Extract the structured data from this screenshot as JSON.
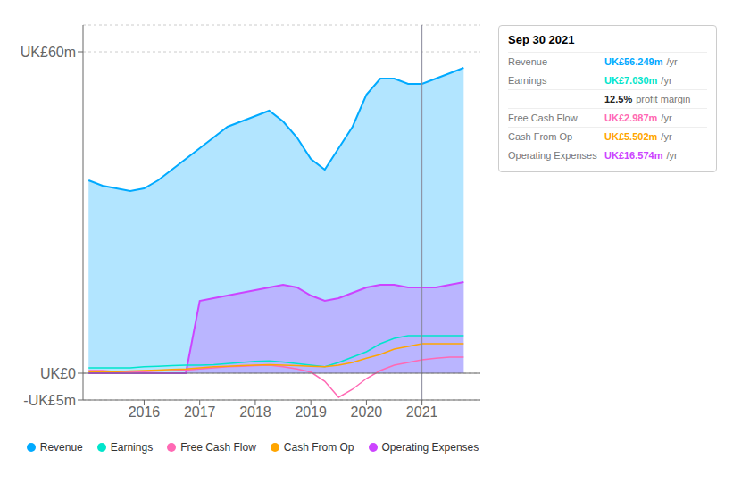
{
  "chart_data": {
    "type": "line",
    "title": "Sep 30 2021",
    "x": [
      2015.0,
      2015.25,
      2015.5,
      2015.75,
      2016.0,
      2016.25,
      2016.5,
      2016.75,
      2017.0,
      2017.25,
      2017.5,
      2017.75,
      2018.0,
      2018.25,
      2018.5,
      2018.75,
      2019.0,
      2019.25,
      2019.5,
      2019.75,
      2020.0,
      2020.25,
      2020.5,
      2020.75,
      2021.0,
      2021.25,
      2021.5,
      2021.75
    ],
    "series": [
      {
        "name": "Revenue",
        "type": "area",
        "color": "#00aaff",
        "values": [
          36,
          35,
          34.5,
          34,
          34.5,
          36,
          38,
          40,
          42,
          44,
          46,
          47,
          48,
          49,
          47,
          44,
          40,
          38,
          42,
          46,
          52,
          55,
          55,
          54,
          54,
          55,
          56,
          57
        ]
      },
      {
        "name": "Earnings",
        "type": "line",
        "color": "#00e5cc",
        "values": [
          1.0,
          1.0,
          1.0,
          1.0,
          1.2,
          1.3,
          1.4,
          1.5,
          1.5,
          1.6,
          1.8,
          2.0,
          2.2,
          2.3,
          2.1,
          1.8,
          1.5,
          1.2,
          2.0,
          3.0,
          4.0,
          5.5,
          6.5,
          7.0,
          7.0,
          7.0,
          7.0,
          7.0
        ]
      },
      {
        "name": "Free Cash Flow",
        "type": "line",
        "color": "#ff69b4",
        "values": [
          0.5,
          0.5,
          0.3,
          0.2,
          0.3,
          0.4,
          0.5,
          0.6,
          0.8,
          1.0,
          1.2,
          1.3,
          1.4,
          1.5,
          1.2,
          0.8,
          0.2,
          -1.5,
          -4.5,
          -3.0,
          -1.0,
          0.5,
          1.5,
          2.0,
          2.5,
          2.8,
          3.0,
          3.0
        ]
      },
      {
        "name": "Cash From Op",
        "type": "line",
        "color": "#ffa500",
        "values": [
          0.3,
          0.3,
          0.3,
          0.4,
          0.5,
          0.6,
          0.7,
          0.8,
          1.0,
          1.2,
          1.3,
          1.4,
          1.5,
          1.6,
          1.5,
          1.4,
          1.3,
          1.2,
          1.5,
          2.0,
          2.8,
          3.5,
          4.5,
          5.0,
          5.5,
          5.5,
          5.5,
          5.5
        ]
      },
      {
        "name": "Operating Expenses",
        "type": "area",
        "color": "#cc44ff",
        "values": [
          0,
          0,
          0,
          0,
          0,
          0,
          0,
          0,
          13.5,
          14.0,
          14.5,
          15.0,
          15.5,
          16.0,
          16.5,
          16.0,
          14.5,
          13.5,
          14.0,
          15.0,
          16.0,
          16.5,
          16.5,
          16.0,
          16.0,
          16.0,
          16.5,
          17.0
        ]
      }
    ],
    "xlim": [
      2014.9,
      2022.05
    ],
    "xticks": [
      2016,
      2017,
      2018,
      2019,
      2020,
      2021
    ],
    "ylim": [
      -5,
      65
    ],
    "yticks": [
      {
        "value": -5,
        "label": "-UK£5m"
      },
      {
        "value": 0,
        "label": "UK£0"
      },
      {
        "value": 60,
        "label": "UK£60m"
      }
    ],
    "grid": "y",
    "legend": "bottom",
    "reference_lines": [
      {
        "x": 2021.0
      },
      {
        "y": 0
      }
    ],
    "annotations": [
      {
        "label": "Revenue",
        "text": "UK£56.249m",
        "suffix": "/yr"
      },
      {
        "label": "Earnings",
        "text": "UK£7.030m",
        "suffix": "/yr"
      },
      {
        "text": "12.5%",
        "suffix": "profit margin"
      },
      {
        "label": "Free Cash Flow",
        "text": "UK£2.987m",
        "suffix": "/yr"
      },
      {
        "label": "Cash From Op",
        "text": "UK£5.502m",
        "suffix": "/yr"
      },
      {
        "label": "Operating Expenses",
        "text": "UK£16.574m",
        "suffix": "/yr"
      }
    ]
  }
}
